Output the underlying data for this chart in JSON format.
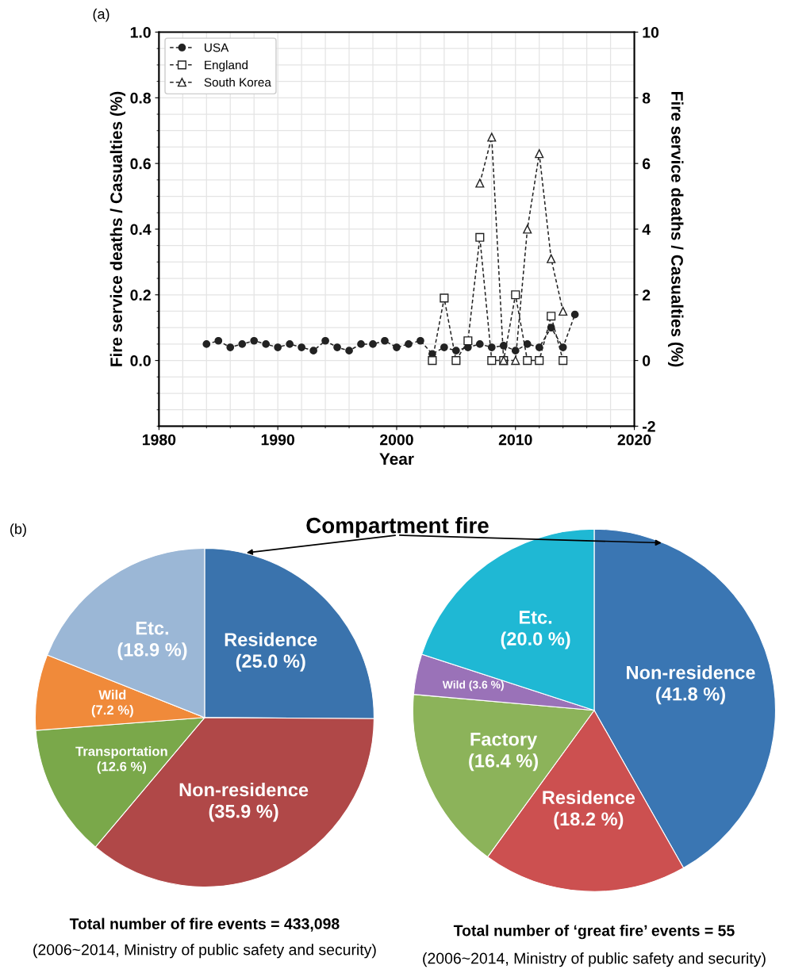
{
  "chart_data": [
    {
      "type": "line",
      "title": "(a)",
      "xlabel": "Year",
      "ylabel": "Fire service deaths / Casualties (%)",
      "y2label": "Fire service deaths / Casualties (%)",
      "xlim": [
        1980,
        2020
      ],
      "xticks": [
        1980,
        1990,
        2000,
        2010,
        2020
      ],
      "ylim": [
        -0.2,
        1.0
      ],
      "yticks": [
        {
          "value": 0,
          "label": "0.0"
        },
        0.2,
        0.4,
        0.6,
        0.8,
        {
          "value": 1,
          "label": "1.0"
        }
      ],
      "y2lim": [
        -2,
        10
      ],
      "y2ticks": [
        -2,
        0,
        2,
        4,
        6,
        8,
        10
      ],
      "grid": true,
      "legend": "top left",
      "line_style": "dashed",
      "series": [
        {
          "name": "USA",
          "color": "#222222",
          "marker": "circle",
          "x": [
            1984,
            1985,
            1986,
            1987,
            1988,
            1989,
            1990,
            1991,
            1992,
            1993,
            1994,
            1995,
            1996,
            1997,
            1998,
            1999,
            2000,
            2001,
            2002,
            2003,
            2004,
            2005,
            2006,
            2007,
            2008,
            2009,
            2010,
            2011,
            2012,
            2013,
            2014,
            2015
          ],
          "values": [
            0.05,
            0.06,
            0.04,
            0.05,
            0.06,
            0.05,
            0.04,
            0.05,
            0.04,
            0.03,
            0.06,
            0.04,
            0.03,
            0.05,
            0.05,
            0.06,
            0.04,
            0.05,
            0.06,
            0.02,
            0.04,
            0.03,
            0.04,
            0.05,
            0.04,
            0.045,
            0.03,
            0.05,
            0.04,
            0.1,
            0.04,
            0.14
          ]
        },
        {
          "name": "England",
          "color": "#222222",
          "marker": "square",
          "x": [
            2003,
            2004,
            2005,
            2006,
            2007,
            2008,
            2009,
            2010,
            2011,
            2012,
            2013,
            2014
          ],
          "values": [
            0.0,
            0.19,
            0.0,
            0.06,
            0.375,
            0.0,
            0.0,
            0.2,
            0.0,
            0.0,
            0.135,
            0.0
          ]
        },
        {
          "name": "South Korea",
          "color": "#222222",
          "marker": "triangle",
          "axis": "y2",
          "x": [
            2007,
            2008,
            2009,
            2010,
            2011,
            2012,
            2013,
            2014
          ],
          "values": [
            5.4,
            6.8,
            0.0,
            0.0,
            4.0,
            6.3,
            3.1,
            1.5
          ]
        }
      ]
    },
    {
      "type": "pie",
      "title": "(b)",
      "annotations": [
        "Compartment fire",
        "Total number of fire events = 433,098",
        "(2006~2014, Ministry of public safety and security)"
      ],
      "categories": [
        "Residence",
        "Non-residence",
        "Transportation",
        "Wild",
        "Etc."
      ],
      "values": [
        25.0,
        35.9,
        12.6,
        7.2,
        18.9
      ],
      "value_labels": [
        "(25.0 %)",
        "(35.9 %)",
        "(12.6 %)",
        "(7.2 %)",
        "(18.9 %)"
      ],
      "colors": [
        "#3a73ad",
        "#b04848",
        "#7aa84a",
        "#f08a3a",
        "#9bb7d6"
      ]
    },
    {
      "type": "pie",
      "annotations": [
        "Total number of ‘great fire’ events = 55",
        "(2006~2014, Ministry of public safety and security)"
      ],
      "categories": [
        "Non-residence",
        "Residence",
        "Factory",
        "Wild",
        "Etc."
      ],
      "values": [
        41.8,
        18.2,
        16.4,
        3.6,
        20.0
      ],
      "value_labels": [
        "(41.8 %)",
        "(18.2 %)",
        "(16.4 %)",
        "(3.6 %)",
        "(20.0 %)"
      ],
      "colors": [
        "#3a76b3",
        "#cc5050",
        "#8cb35a",
        "#9a72b8",
        "#1fb8d4"
      ]
    }
  ]
}
